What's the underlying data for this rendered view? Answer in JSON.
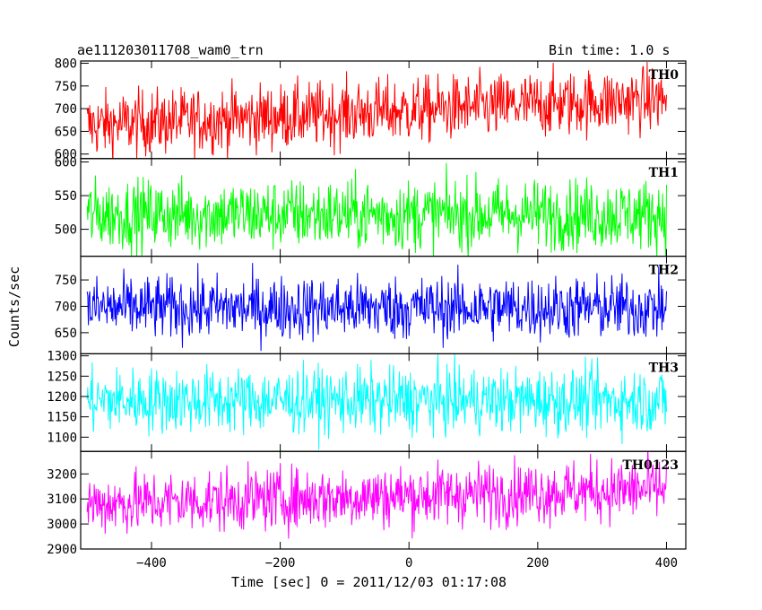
{
  "header": {
    "title": "ae111203011708_wam0_trn",
    "bin_time": "Bin time: 1.0 s"
  },
  "chart_data": {
    "type": "line",
    "title": "ae111203011708_wam0_trn",
    "ylabel": "Counts/sec",
    "xlabel": "Time [sec] 0 = 2011/12/03 01:17:08",
    "xlim": [
      -510,
      430
    ],
    "x_ticks": [
      -400,
      -200,
      0,
      200,
      400
    ],
    "x_tick_labels": [
      "−400",
      "−200",
      "0",
      "200",
      "400"
    ],
    "x_range": [
      -500,
      400
    ],
    "bin_time_s": 1.0,
    "panels": [
      {
        "name": "TH0",
        "color": "#ff0000",
        "ylim": [
          590,
          805
        ],
        "yticks": [
          600,
          650,
          700,
          750,
          800
        ],
        "yticks_labels": [
          "600",
          "650",
          "700",
          "750",
          "800"
        ],
        "mean_start": 663,
        "mean_end": 722,
        "noise": 36
      },
      {
        "name": "TH1",
        "color": "#00ff00",
        "ylim": [
          460,
          605
        ],
        "yticks": [
          500,
          550,
          600
        ],
        "yticks_labels": [
          "500",
          "550",
          "600"
        ],
        "mean_start": 522,
        "mean_end": 522,
        "noise": 26
      },
      {
        "name": "TH2",
        "color": "#0000ff",
        "ylim": [
          610,
          795
        ],
        "yticks": [
          650,
          700,
          750
        ],
        "yticks_labels": [
          "650",
          "700",
          "750"
        ],
        "mean_start": 697,
        "mean_end": 697,
        "noise": 30
      },
      {
        "name": "TH3",
        "color": "#00ffff",
        "ylim": [
          1065,
          1305
        ],
        "yticks": [
          1100,
          1150,
          1200,
          1250,
          1300
        ],
        "yticks_labels": [
          "1100",
          "1150",
          "1200",
          "1250",
          "1300"
        ],
        "mean_start": 1190,
        "mean_end": 1190,
        "noise": 40
      },
      {
        "name": "TH0123",
        "color": "#ff00ff",
        "ylim": [
          2900,
          3290
        ],
        "yticks": [
          2900,
          3000,
          3100,
          3200
        ],
        "yticks_labels": [
          "2900",
          "3000",
          "3100",
          "3200"
        ],
        "mean_start": 3080,
        "mean_end": 3140,
        "noise": 62
      }
    ]
  }
}
